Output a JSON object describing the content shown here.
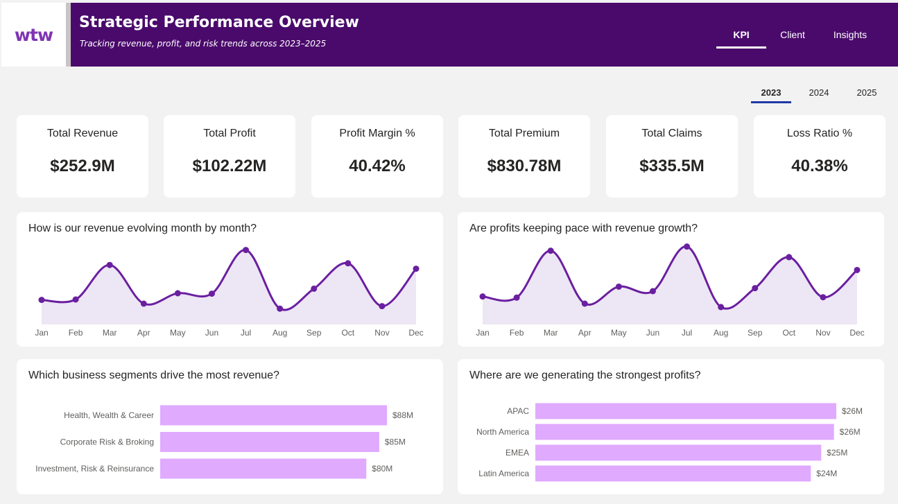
{
  "header": {
    "logo_text": "wtw",
    "title": "Strategic Performance Overview",
    "subtitle": "Tracking revenue, profit, and risk trends across 2023–2025",
    "nav": [
      {
        "label": "KPI",
        "active": true
      },
      {
        "label": "Client",
        "active": false
      },
      {
        "label": "Insights",
        "active": false
      }
    ]
  },
  "years": [
    {
      "label": "2023",
      "active": true
    },
    {
      "label": "2024",
      "active": false
    },
    {
      "label": "2025",
      "active": false
    }
  ],
  "kpis": [
    {
      "label": "Total Revenue",
      "value": "$252.9M"
    },
    {
      "label": "Total Profit",
      "value": "$102.22M"
    },
    {
      "label": "Profit Margin %",
      "value": "40.42%"
    },
    {
      "label": "Total Premium",
      "value": "$830.78M"
    },
    {
      "label": "Total Claims",
      "value": "$335.5M"
    },
    {
      "label": "Loss Ratio %",
      "value": "40.38%"
    }
  ],
  "colors": {
    "banner": "#4a0a6b",
    "line": "#6a1fa0",
    "area": "#ede6f4",
    "bar": "#e0aaff",
    "year_underline": "#1f3aa5"
  },
  "chart_data": [
    {
      "type": "area",
      "title": "How is our revenue evolving month by month?",
      "categories": [
        "Jan",
        "Feb",
        "Mar",
        "Apr",
        "May",
        "Jun",
        "Jul",
        "Aug",
        "Sep",
        "Oct",
        "Nov",
        "Dec"
      ],
      "values": [
        29.5,
        30,
        71.5,
        25,
        37.5,
        37,
        89.5,
        19,
        43,
        73.5,
        22,
        67
      ],
      "ylim": [
        0,
        100
      ],
      "grid": false,
      "legend": "none"
    },
    {
      "type": "area",
      "title": "Are profits keeping pace with revenue growth?",
      "categories": [
        "Jan",
        "Feb",
        "Mar",
        "Apr",
        "May",
        "Jun",
        "Jul",
        "Aug",
        "Sep",
        "Oct",
        "Nov",
        "Dec"
      ],
      "values": [
        37,
        35.5,
        97.5,
        27.5,
        50,
        44,
        103,
        23,
        48,
        89,
        36,
        72
      ],
      "ylim": [
        0,
        110
      ],
      "grid": false,
      "legend": "none"
    },
    {
      "type": "bar",
      "orientation": "horizontal",
      "title": "Which business segments drive the most revenue?",
      "categories": [
        "Health, Wealth & Career",
        "Corporate Risk & Broking",
        "Investment, Risk & Reinsurance"
      ],
      "values": [
        88,
        85,
        80
      ],
      "labels": [
        "$88M",
        "$85M",
        "$80M"
      ],
      "xlim": [
        0,
        88
      ]
    },
    {
      "type": "bar",
      "orientation": "horizontal",
      "title": "Where are we generating the strongest profits?",
      "categories": [
        "APAC",
        "North America",
        "EMEA",
        "Latin America"
      ],
      "values": [
        26,
        25.8,
        24.7,
        23.8
      ],
      "labels": [
        "$26M",
        "$26M",
        "$25M",
        "$24M"
      ],
      "xlim": [
        0,
        26
      ]
    }
  ]
}
